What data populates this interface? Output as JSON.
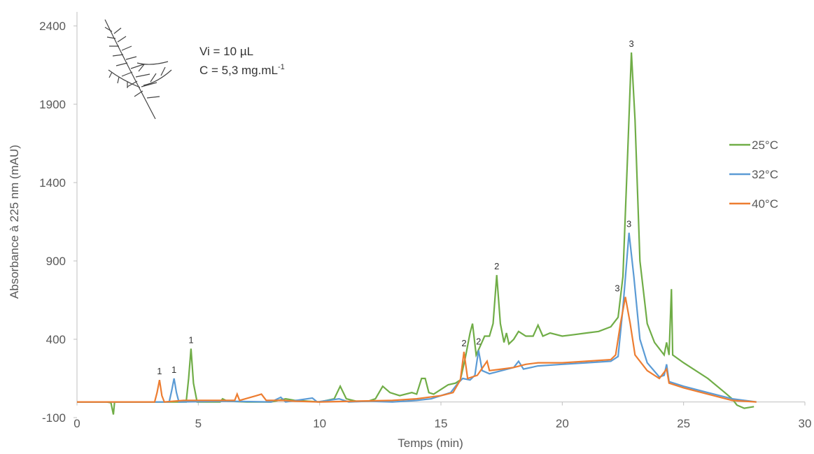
{
  "chart_data": {
    "type": "line",
    "x_label": "Temps (min)",
    "y_label": "Absorbance à 225 nm (mAU)",
    "annotations": [
      {
        "text": "Vi = 10 µL"
      },
      {
        "text": "C = 5,3 mg.mL",
        "sup": "-1"
      }
    ],
    "xlim": [
      0,
      30
    ],
    "xticks": [
      0,
      5,
      10,
      15,
      20,
      25,
      30
    ],
    "ylim": [
      -100,
      2400
    ],
    "yticks": [
      -100,
      400,
      900,
      1400,
      1900,
      2400
    ],
    "legend": "right",
    "series": [
      {
        "name": "25°C",
        "color": "#70ad47",
        "x": [
          0,
          1.2,
          1.4,
          1.5,
          1.55,
          3,
          4.5,
          4.6,
          4.7,
          4.8,
          4.95,
          5.9,
          6,
          6.2,
          7,
          8,
          8.6,
          9,
          10,
          10.6,
          10.85,
          11.1,
          11.5,
          12,
          12.3,
          12.6,
          12.9,
          13.3,
          13.8,
          14,
          14.2,
          14.35,
          14.5,
          14.7,
          15,
          15.3,
          15.6,
          15.8,
          16,
          16.2,
          16.3,
          16.45,
          16.6,
          16.8,
          17,
          17.15,
          17.3,
          17.45,
          17.6,
          17.7,
          17.8,
          18,
          18.2,
          18.5,
          18.8,
          19,
          19.2,
          19.5,
          20,
          20.5,
          21,
          21.5,
          22,
          22.3,
          22.5,
          22.7,
          22.85,
          23,
          23.2,
          23.5,
          23.8,
          24,
          24.2,
          24.3,
          24.4,
          24.5,
          24.55,
          25,
          26,
          26.7,
          27,
          27.2,
          27.5,
          27.9
        ],
        "values": [
          0,
          0,
          -5,
          -80,
          0,
          0,
          0,
          150,
          340,
          120,
          0,
          0,
          20,
          5,
          0,
          0,
          20,
          10,
          0,
          20,
          100,
          20,
          5,
          5,
          20,
          100,
          60,
          40,
          60,
          50,
          150,
          150,
          60,
          50,
          80,
          110,
          120,
          140,
          280,
          440,
          500,
          300,
          350,
          420,
          420,
          500,
          810,
          500,
          380,
          440,
          370,
          400,
          450,
          420,
          420,
          490,
          420,
          440,
          420,
          430,
          440,
          450,
          480,
          540,
          800,
          1600,
          2230,
          1800,
          900,
          500,
          380,
          340,
          300,
          380,
          300,
          720,
          300,
          250,
          150,
          60,
          20,
          -20,
          -40,
          -30
        ]
      },
      {
        "name": "32°C",
        "color": "#5b9bd5",
        "x": [
          0,
          3,
          3.8,
          3.9,
          4,
          4.1,
          4.2,
          6,
          8,
          8.4,
          8.6,
          9.7,
          9.9,
          10.8,
          11.2,
          12,
          13,
          14,
          14.6,
          15,
          15.4,
          15.7,
          15.9,
          16.2,
          16.4,
          16.55,
          16.7,
          17,
          17.5,
          18,
          18.2,
          18.4,
          19,
          20,
          21,
          22,
          22.3,
          22.5,
          22.75,
          22.95,
          23.2,
          23.5,
          24,
          24.2,
          24.3,
          24.4,
          25,
          26,
          27,
          28
        ],
        "values": [
          0,
          0,
          0,
          70,
          150,
          60,
          0,
          5,
          0,
          30,
          0,
          25,
          0,
          20,
          0,
          5,
          0,
          10,
          20,
          40,
          60,
          120,
          150,
          140,
          170,
          330,
          200,
          180,
          200,
          220,
          260,
          210,
          230,
          240,
          250,
          260,
          290,
          600,
          1080,
          800,
          400,
          250,
          160,
          170,
          240,
          130,
          100,
          60,
          20,
          0
        ]
      },
      {
        "name": "40°C",
        "color": "#ed7d31",
        "x": [
          0,
          3.2,
          3.3,
          3.4,
          3.5,
          3.6,
          4.4,
          5.1,
          6.5,
          6.6,
          6.7,
          7.4,
          7.6,
          7.8,
          8.5,
          9,
          10,
          13,
          14,
          15,
          15.5,
          15.8,
          15.95,
          16.1,
          16.5,
          16.9,
          17,
          17.5,
          18,
          18.5,
          19,
          20,
          21,
          22,
          22.2,
          22.4,
          22.6,
          22.8,
          23,
          23.5,
          24,
          24.3,
          24.4,
          25,
          26,
          27,
          28
        ],
        "values": [
          0,
          0,
          60,
          140,
          40,
          0,
          10,
          10,
          10,
          50,
          10,
          40,
          50,
          10,
          10,
          5,
          0,
          10,
          20,
          40,
          60,
          140,
          320,
          150,
          170,
          260,
          200,
          210,
          220,
          240,
          250,
          250,
          260,
          270,
          300,
          500,
          670,
          500,
          300,
          200,
          150,
          210,
          120,
          90,
          50,
          10,
          0
        ]
      }
    ],
    "peak_labels": [
      {
        "text": "1",
        "x": 3.4,
        "y": 140
      },
      {
        "text": "1",
        "x": 4.0,
        "y": 150
      },
      {
        "text": "1",
        "x": 4.7,
        "y": 340
      },
      {
        "text": "2",
        "x": 15.95,
        "y": 320
      },
      {
        "text": "2",
        "x": 16.55,
        "y": 330
      },
      {
        "text": "2",
        "x": 17.3,
        "y": 810
      },
      {
        "text": "3",
        "x": 22.85,
        "y": 2230
      },
      {
        "text": "3",
        "x": 22.75,
        "y": 1080
      },
      {
        "text": "3",
        "x": 22.5,
        "y": 670
      }
    ]
  }
}
